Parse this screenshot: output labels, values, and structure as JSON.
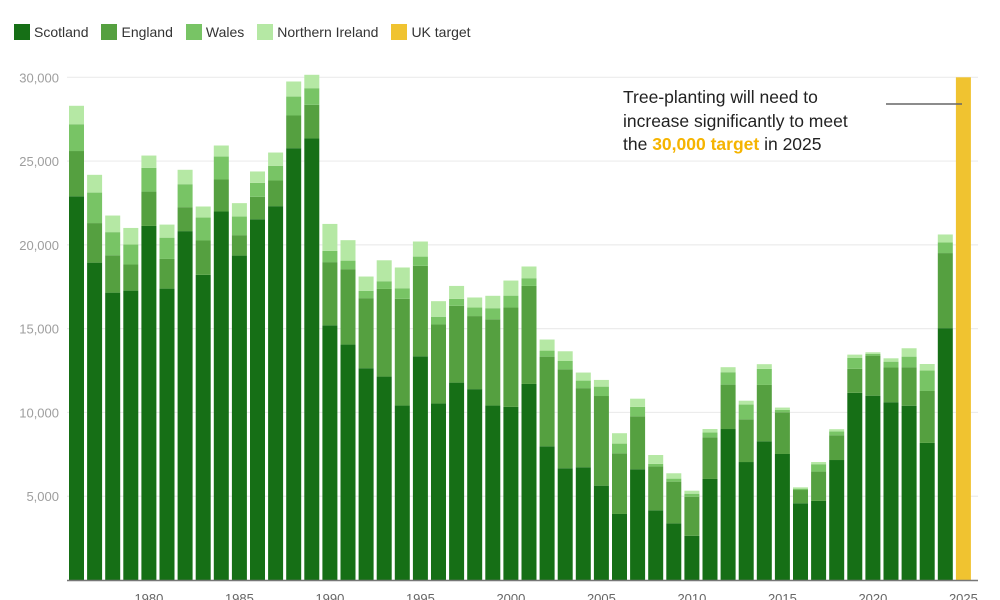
{
  "legend": [
    {
      "label": "Scotland",
      "color": "#166f16"
    },
    {
      "label": "England",
      "color": "#55a040"
    },
    {
      "label": "Wales",
      "color": "#78c465"
    },
    {
      "label": "Northern Ireland",
      "color": "#b5e8a4"
    },
    {
      "label": "UK target",
      "color": "#f0c330"
    }
  ],
  "annotation": {
    "line1": "Tree-planting will need to",
    "line2": "increase significantly to meet",
    "line3_pre": "the ",
    "line3_highlight": "30,000 target",
    "line3_post": " in 2025"
  },
  "chart_data": {
    "type": "bar",
    "stacked": true,
    "title": "",
    "xlabel": "",
    "ylabel": "",
    "ylim": [
      0,
      30000
    ],
    "y_ticks": [
      5000,
      10000,
      15000,
      20000,
      25000,
      30000
    ],
    "y_tick_labels": [
      "5,000",
      "10,000",
      "15,000",
      "20,000",
      "25,000",
      "30,000"
    ],
    "x_tick_labels": [
      "1980",
      "1985",
      "1990",
      "1995",
      "2000",
      "2005",
      "2010",
      "2015",
      "2020",
      "2025"
    ],
    "grid": true,
    "legend_position": "top-left",
    "categories": [
      1976,
      1977,
      1978,
      1979,
      1980,
      1981,
      1982,
      1983,
      1984,
      1985,
      1986,
      1987,
      1988,
      1989,
      1990,
      1991,
      1992,
      1993,
      1994,
      1995,
      1996,
      1997,
      1998,
      1999,
      2000,
      2001,
      2002,
      2003,
      2004,
      2005,
      2006,
      2007,
      2008,
      2009,
      2010,
      2011,
      2012,
      2013,
      2014,
      2015,
      2016,
      2017,
      2018,
      2019,
      2020,
      2021,
      2022,
      2023,
      2024
    ],
    "series": [
      {
        "name": "Scotland",
        "values": [
          22900,
          18940,
          17150,
          17270,
          21130,
          17390,
          20820,
          18210,
          21990,
          19360,
          21530,
          22310,
          25770,
          26350,
          15200,
          14050,
          12640,
          12140,
          10410,
          13350,
          10530,
          11780,
          11390,
          10410,
          10330,
          11700,
          7980,
          6670,
          6730,
          5630,
          3940,
          6610,
          4160,
          3380,
          2640,
          6030,
          9010,
          7040,
          8280,
          7520,
          4580,
          4720,
          7160,
          11170,
          11000,
          10610,
          10400,
          8180,
          15030
        ]
      },
      {
        "name": "England",
        "values": [
          2700,
          2360,
          2230,
          1560,
          2050,
          1770,
          1430,
          2050,
          1910,
          1220,
          1340,
          1530,
          1950,
          2010,
          3770,
          4500,
          4180,
          5230,
          6370,
          5400,
          4720,
          4580,
          4360,
          5150,
          5930,
          5850,
          5350,
          5900,
          4720,
          5350,
          3620,
          3160,
          2610,
          2490,
          2330,
          2490,
          2650,
          2550,
          3360,
          2490,
          790,
          1750,
          1480,
          1430,
          2390,
          2070,
          2300,
          3100,
          4480
        ]
      },
      {
        "name": "Wales",
        "values": [
          1600,
          1820,
          1380,
          1190,
          1420,
          1270,
          1370,
          1370,
          1370,
          1110,
          830,
          880,
          1130,
          990,
          670,
          510,
          440,
          460,
          630,
          550,
          460,
          420,
          510,
          660,
          710,
          460,
          360,
          500,
          450,
          560,
          580,
          560,
          160,
          180,
          180,
          280,
          740,
          880,
          960,
          140,
          80,
          440,
          220,
          650,
          100,
          350,
          630,
          1220,
          630
        ]
      },
      {
        "name": "Northern Ireland",
        "values": [
          1100,
          1060,
          990,
          990,
          730,
          780,
          860,
          660,
          660,
          800,
          680,
          790,
          900,
          800,
          1610,
          1220,
          850,
          1250,
          1240,
          900,
          930,
          770,
          600,
          740,
          900,
          700,
          660,
          580,
          480,
          400,
          620,
          490,
          530,
          320,
          180,
          210,
          300,
          230,
          280,
          140,
          80,
          130,
          140,
          200,
          100,
          200,
          500,
          390,
          480
        ]
      }
    ],
    "target": {
      "name": "UK target",
      "year": 2025,
      "value": 30000
    },
    "annotation_text": "Tree-planting will need to increase significantly to meet the 30,000 target in 2025"
  }
}
